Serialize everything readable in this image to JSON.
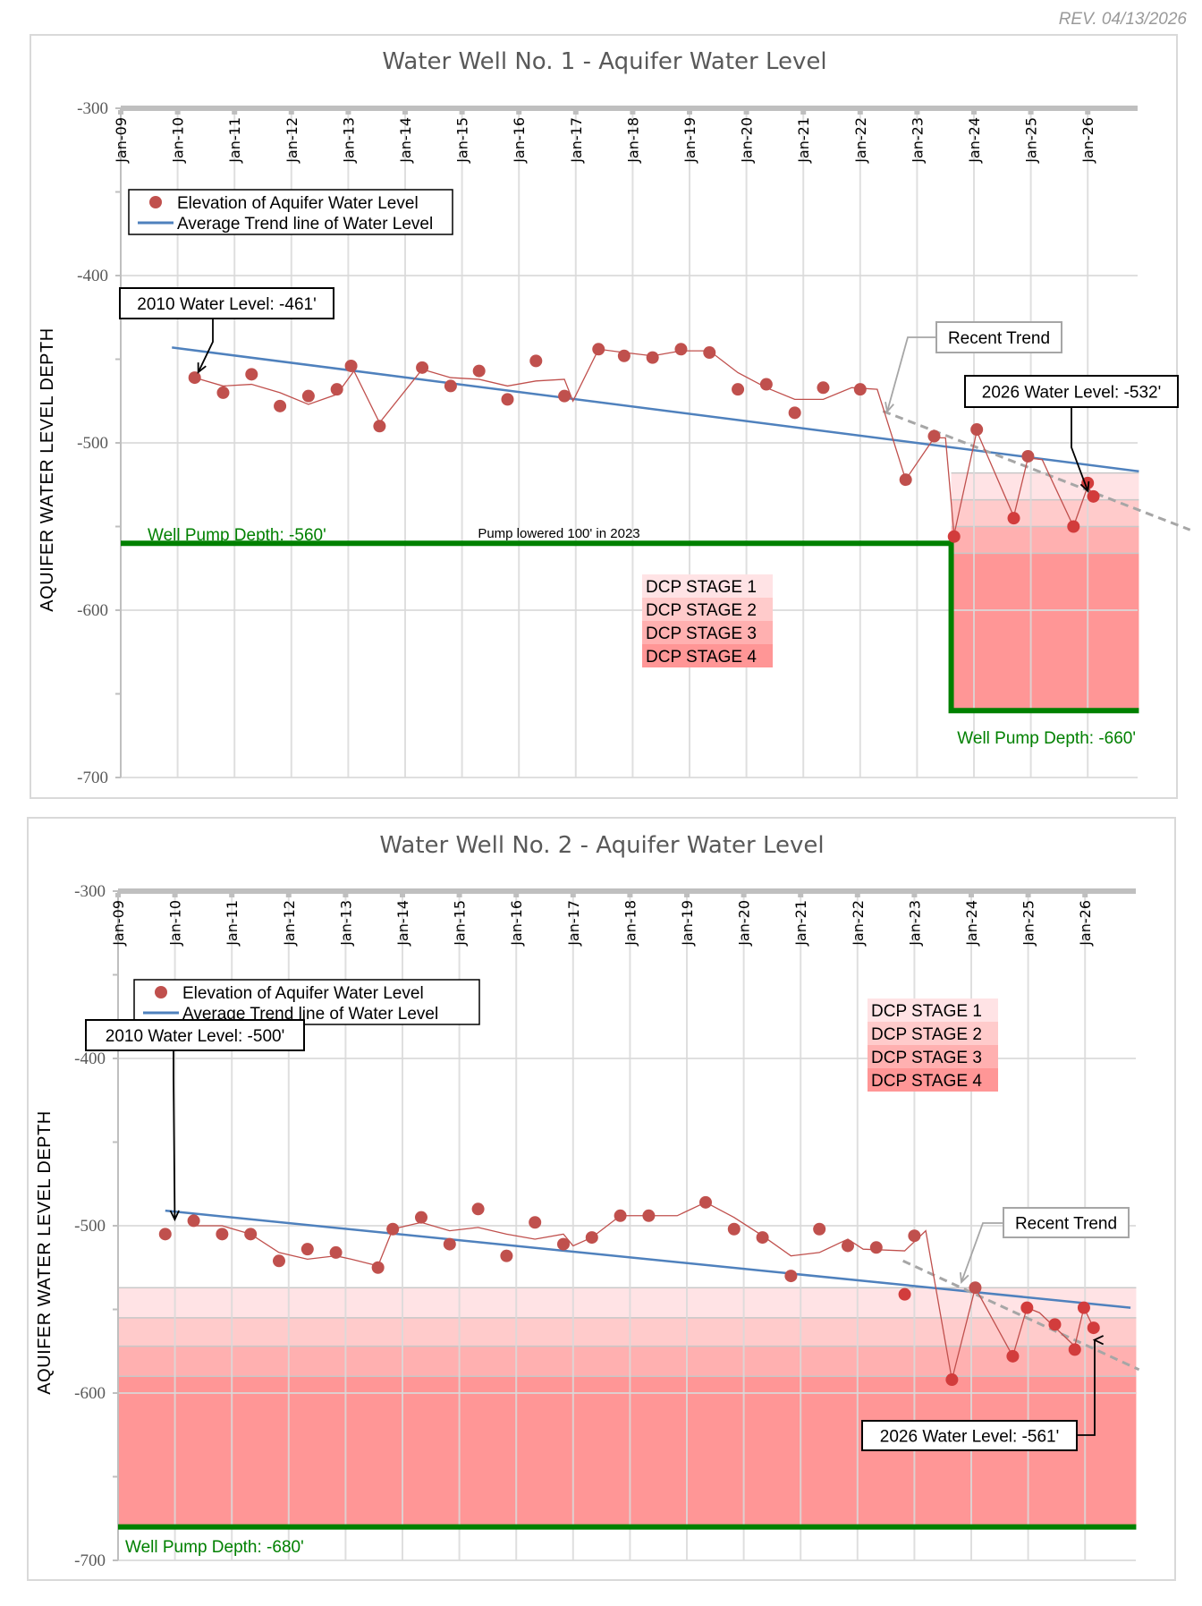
{
  "revision": "REV. 04/13/2026",
  "colors": {
    "point": "#c0504d",
    "avg_line": "#c0504d",
    "trend": "#4f81bd",
    "recent_trend": "#a6a6a6",
    "pump": "#008000",
    "dcp1": "#ffe3e5",
    "dcp2": "#ffcbcb",
    "dcp3": "#ffb0b0",
    "dcp4": "#ff9696",
    "grid": "#d9d9d9"
  },
  "chart_data": [
    {
      "type": "scatter",
      "title": "Water Well No. 1 - Aquifer Water Level",
      "ylabel": "AQUIFER WATER LEVEL DEPTH",
      "xlabel": "",
      "ylim": [
        -700,
        -300
      ],
      "yticks": [
        "-300",
        "-400",
        "-500",
        "-600",
        "-700"
      ],
      "xlim_years": [
        2009,
        2026.9
      ],
      "xticks": [
        "Jan-09",
        "Jan-10",
        "Jan-11",
        "Jan-12",
        "Jan-13",
        "Jan-14",
        "Jan-15",
        "Jan-16",
        "Jan-17",
        "Jan-18",
        "Jan-19",
        "Jan-20",
        "Jan-21",
        "Jan-22",
        "Jan-23",
        "Jan-24",
        "Jan-25",
        "Jan-26"
      ],
      "grid": true,
      "legend": {
        "placement": "top-left",
        "entries": [
          "Elevation of Aquifer Water Level",
          "Average Trend line of Water Level"
        ]
      },
      "series": [
        {
          "name": "Elevation of Aquifer Water Level",
          "x": [
            2010.3,
            2010.8,
            2011.3,
            2011.8,
            2012.3,
            2012.8,
            2013.05,
            2013.55,
            2014.3,
            2014.8,
            2015.3,
            2015.8,
            2016.3,
            2016.8,
            2017.4,
            2017.85,
            2018.35,
            2018.85,
            2019.35,
            2019.85,
            2020.35,
            2020.85,
            2021.35,
            2022.0,
            2022.8,
            2023.3,
            2023.65,
            2024.05,
            2024.7,
            2024.95,
            2025.75,
            2026.0,
            2026.1
          ],
          "y": [
            -461,
            -470,
            -459,
            -478,
            -472,
            -468,
            -454,
            -490,
            -455,
            -466,
            -457,
            -474,
            -451,
            -472,
            -444,
            -448,
            -449,
            -444,
            -446,
            -468,
            -465,
            -482,
            -467,
            -468,
            -522,
            -496,
            -556,
            -492,
            -545,
            -508,
            -550,
            -524,
            -532
          ]
        },
        {
          "name": "Moving Average",
          "x": [
            2010.3,
            2010.8,
            2011.3,
            2011.8,
            2012.3,
            2012.8,
            2013.1,
            2013.55,
            2014.3,
            2014.8,
            2015.3,
            2015.8,
            2016.3,
            2016.8,
            2016.95,
            2017.4,
            2017.85,
            2018.35,
            2018.85,
            2019.35,
            2019.85,
            2020.35,
            2020.85,
            2021.35,
            2021.85,
            2022.3,
            2022.8,
            2023.3,
            2023.5,
            2023.65,
            2024.05,
            2024.7,
            2024.95,
            2025.2,
            2025.75,
            2026.0,
            2026.1
          ],
          "y": [
            -461,
            -466,
            -465,
            -470,
            -477,
            -471,
            -457,
            -488,
            -456,
            -461,
            -462,
            -466,
            -463,
            -462,
            -475,
            -444,
            -446,
            -448,
            -445,
            -445,
            -458,
            -467,
            -474,
            -474,
            -467,
            -468,
            -522,
            -497,
            -497,
            -555,
            -493,
            -544,
            -509,
            -510,
            -550,
            -526,
            -532
          ]
        }
      ],
      "trend_line": {
        "x": [
          2009.9,
          2026.9
        ],
        "y": [
          -443,
          -517
        ]
      },
      "recent_trend": {
        "label": "Recent Trend",
        "x": [
          2022.4,
          2027.8
        ],
        "y": [
          -481,
          -552
        ]
      },
      "pump_line": {
        "x": [
          2009,
          2023.6,
          2023.6,
          2026.9
        ],
        "y": [
          -560,
          -560,
          -660,
          -660
        ]
      },
      "pump_labels": [
        "Well Pump Depth: -560'",
        "Well Pump Depth: -660'"
      ],
      "pump_note": "Pump lowered 100' in 2023",
      "dcp_bands": {
        "x_start": 2023.6,
        "x_end": 2026.9,
        "stage_tops": [
          -518,
          -534,
          -550,
          -566
        ],
        "bottom": -660
      },
      "dcp_legend": [
        "DCP STAGE 1",
        "DCP STAGE 2",
        "DCP STAGE 3",
        "DCP STAGE 4"
      ],
      "annotations": [
        {
          "text": "2010 Water Level: -461'",
          "target": [
            2010.3,
            -461
          ]
        },
        {
          "text": "2026 Water Level: -532'",
          "target": [
            2026.05,
            -531
          ]
        }
      ]
    },
    {
      "type": "scatter",
      "title": "Water Well No. 2 - Aquifer Water Level",
      "ylabel": "AQUIFER WATER LEVEL DEPTH",
      "xlabel": "",
      "ylim": [
        -700,
        -300
      ],
      "yticks": [
        "-300",
        "-400",
        "-500",
        "-600",
        "-700"
      ],
      "xlim_years": [
        2009,
        2026.9
      ],
      "xticks": [
        "Jan-09",
        "Jan-10",
        "Jan-11",
        "Jan-12",
        "Jan-13",
        "Jan-14",
        "Jan-15",
        "Jan-16",
        "Jan-17",
        "Jan-18",
        "Jan-19",
        "Jan-20",
        "Jan-21",
        "Jan-22",
        "Jan-23",
        "Jan-24",
        "Jan-25",
        "Jan-26"
      ],
      "grid": true,
      "legend": {
        "placement": "top-left",
        "entries": [
          "Elevation of Aquifer Water Level",
          "Average Trend line of Water Level"
        ]
      },
      "series": [
        {
          "name": "Elevation of Aquifer Water Level",
          "x": [
            2009.83,
            2010.33,
            2010.83,
            2011.33,
            2011.83,
            2012.33,
            2012.83,
            2013.57,
            2013.83,
            2014.33,
            2014.83,
            2015.33,
            2015.83,
            2016.33,
            2016.83,
            2017.33,
            2017.83,
            2018.33,
            2019.33,
            2019.83,
            2020.33,
            2020.83,
            2021.33,
            2021.83,
            2022.33,
            2022.83,
            2023.0,
            2023.66,
            2024.07,
            2024.73,
            2024.98,
            2025.47,
            2025.82,
            2025.98,
            2026.15
          ],
          "y": [
            -505,
            -497,
            -505,
            -505,
            -521,
            -514,
            -516,
            -525,
            -502,
            -495,
            -511,
            -490,
            -518,
            -498,
            -511,
            -507,
            -494,
            -494,
            -486,
            -502,
            -507,
            -530,
            -502,
            -512,
            -513,
            -541,
            -506,
            -592,
            -537,
            -578,
            -549,
            -559,
            -574,
            -549,
            -561
          ]
        },
        {
          "name": "Moving Average",
          "x": [
            2010.33,
            2010.83,
            2011.33,
            2011.83,
            2012.33,
            2012.83,
            2013.1,
            2013.57,
            2013.83,
            2014.33,
            2014.83,
            2015.33,
            2015.83,
            2016.33,
            2016.83,
            2017.0,
            2017.33,
            2017.83,
            2018.33,
            2018.83,
            2019.33,
            2019.83,
            2020.33,
            2020.83,
            2021.33,
            2021.83,
            2022.1,
            2022.83,
            2023.2,
            2023.66,
            2024.07,
            2024.73,
            2024.98,
            2025.2,
            2025.82,
            2025.98,
            2026.15
          ],
          "y": [
            -500,
            -500,
            -505,
            -516,
            -520,
            -518,
            -520,
            -524,
            -502,
            -498,
            -503,
            -501,
            -505,
            -508,
            -505,
            -512,
            -507,
            -494,
            -494,
            -494,
            -486,
            -495,
            -506,
            -518,
            -516,
            -508,
            -514,
            -515,
            -503,
            -592,
            -537,
            -578,
            -549,
            -552,
            -572,
            -549,
            -561
          ]
        }
      ],
      "trend_line": {
        "x": [
          2009.83,
          2026.8
        ],
        "y": [
          -491,
          -549
        ]
      },
      "recent_trend": {
        "label": "Recent Trend",
        "x": [
          2022.8,
          2026.95
        ],
        "y": [
          -521,
          -586
        ]
      },
      "pump_line": {
        "x": [
          2009,
          2026.9
        ],
        "y": [
          -680,
          -680
        ]
      },
      "pump_labels": [
        "Well Pump Depth: -680'"
      ],
      "dcp_bands": {
        "x_start": 2009,
        "x_end": 2026.9,
        "stage_tops": [
          -537,
          -555,
          -572,
          -590
        ],
        "bottom": -680
      },
      "dcp_legend": [
        "DCP STAGE 1",
        "DCP STAGE 2",
        "DCP STAGE 3",
        "DCP STAGE 4"
      ],
      "annotations": [
        {
          "text": "2010 Water Level: -500'",
          "target": [
            2009.95,
            -500
          ]
        },
        {
          "text": "2026 Water Level: -561'",
          "target": [
            2026.15,
            -564
          ]
        }
      ]
    }
  ]
}
